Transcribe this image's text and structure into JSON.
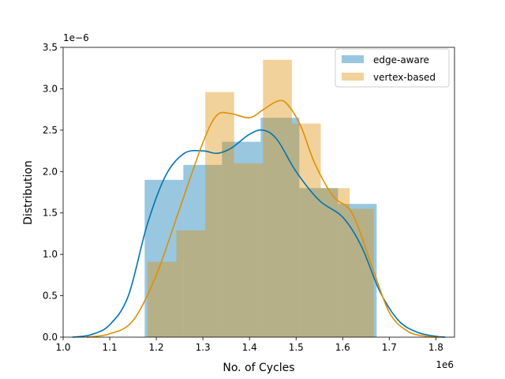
{
  "chart_data": {
    "type": "bar",
    "xlabel": "No. of Cycles",
    "ylabel": "Distribution",
    "x_offset_label": "1e6",
    "y_offset_label": "1e−6",
    "xlim": [
      1.0,
      1.84
    ],
    "ylim": [
      0,
      3.5
    ],
    "x_ticks": [
      1.0,
      1.1,
      1.2,
      1.3,
      1.4,
      1.5,
      1.6,
      1.7,
      1.8
    ],
    "x_tick_labels": [
      "1.0",
      "1.1",
      "1.2",
      "1.3",
      "1.4",
      "1.5",
      "1.6",
      "1.7",
      "1.8"
    ],
    "y_ticks": [
      0,
      0.5,
      1.0,
      1.5,
      2.0,
      2.5,
      3.0,
      3.5
    ],
    "y_tick_labels": [
      "0.0",
      "0.5",
      "1.0",
      "1.5",
      "2.0",
      "2.5",
      "3.0",
      "3.5"
    ],
    "legend_position": "top-right",
    "series": [
      {
        "name": "edge-aware",
        "color": "#0173b2",
        "bin_edges": [
          1.175,
          1.258,
          1.341,
          1.424,
          1.507,
          1.59,
          1.673
        ],
        "values": [
          1.9,
          2.08,
          2.36,
          2.65,
          1.8,
          1.61
        ],
        "kde_x": [
          1.02,
          1.06,
          1.1,
          1.14,
          1.18,
          1.22,
          1.26,
          1.3,
          1.33,
          1.36,
          1.4,
          1.43,
          1.46,
          1.5,
          1.55,
          1.6,
          1.64,
          1.68,
          1.72,
          1.76,
          1.8,
          1.82
        ],
        "kde_y": [
          0.0,
          0.03,
          0.15,
          0.5,
          1.35,
          1.95,
          2.22,
          2.25,
          2.22,
          2.28,
          2.45,
          2.5,
          2.38,
          2.0,
          1.65,
          1.45,
          1.1,
          0.55,
          0.2,
          0.06,
          0.01,
          0.0
        ]
      },
      {
        "name": "vertex-based",
        "color": "#de8f05",
        "bin_edges": [
          1.181,
          1.243,
          1.305,
          1.367,
          1.429,
          1.491,
          1.553,
          1.615,
          1.667
        ],
        "values": [
          0.91,
          1.29,
          2.96,
          2.1,
          3.35,
          2.58,
          1.8,
          1.55
        ],
        "kde_x": [
          1.05,
          1.1,
          1.15,
          1.2,
          1.25,
          1.3,
          1.33,
          1.36,
          1.4,
          1.43,
          1.46,
          1.48,
          1.51,
          1.54,
          1.58,
          1.62,
          1.66,
          1.7,
          1.74,
          1.78,
          1.81
        ],
        "kde_y": [
          0.0,
          0.04,
          0.2,
          0.75,
          1.55,
          2.35,
          2.68,
          2.7,
          2.65,
          2.75,
          2.85,
          2.82,
          2.55,
          2.1,
          1.7,
          1.5,
          0.9,
          0.3,
          0.07,
          0.01,
          0.0
        ]
      }
    ]
  }
}
